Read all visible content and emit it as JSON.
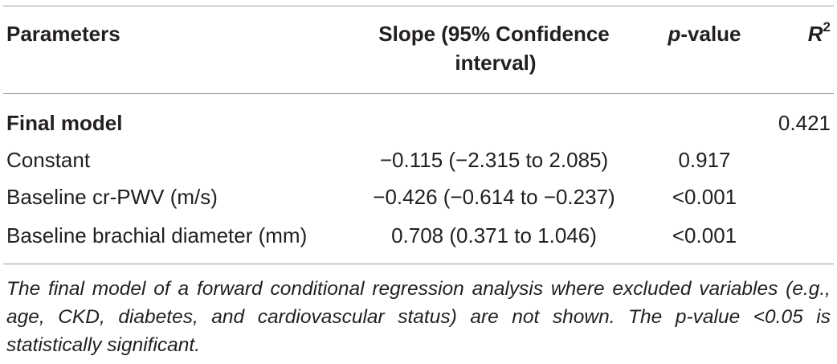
{
  "table": {
    "headers": {
      "parameters": "Parameters",
      "slope_line1": "Slope (95% Confidence",
      "slope_line2": "interval)",
      "p_italic": "p",
      "p_rest": "-value",
      "r_letter": "R",
      "r_exp": "2"
    },
    "group": {
      "label": "Final model",
      "r2": "0.421"
    },
    "rows": [
      {
        "parameter": "Constant",
        "slope": "−0.115 (−2.315 to 2.085)",
        "p": "0.917"
      },
      {
        "parameter": "Baseline cr-PWV (m/s)",
        "slope": "−0.426 (−0.614 to −0.237)",
        "p": "<0.001"
      },
      {
        "parameter": "Baseline brachial diameter (mm)",
        "slope": "0.708 (0.371 to 1.046)",
        "p": "<0.001"
      }
    ],
    "footnote": "The final model of a forward conditional regression analysis where excluded variables (e.g., age, CKD, diabetes, and cardiovascular status) are not shown. The p-value <0.05 is statistically significant."
  }
}
